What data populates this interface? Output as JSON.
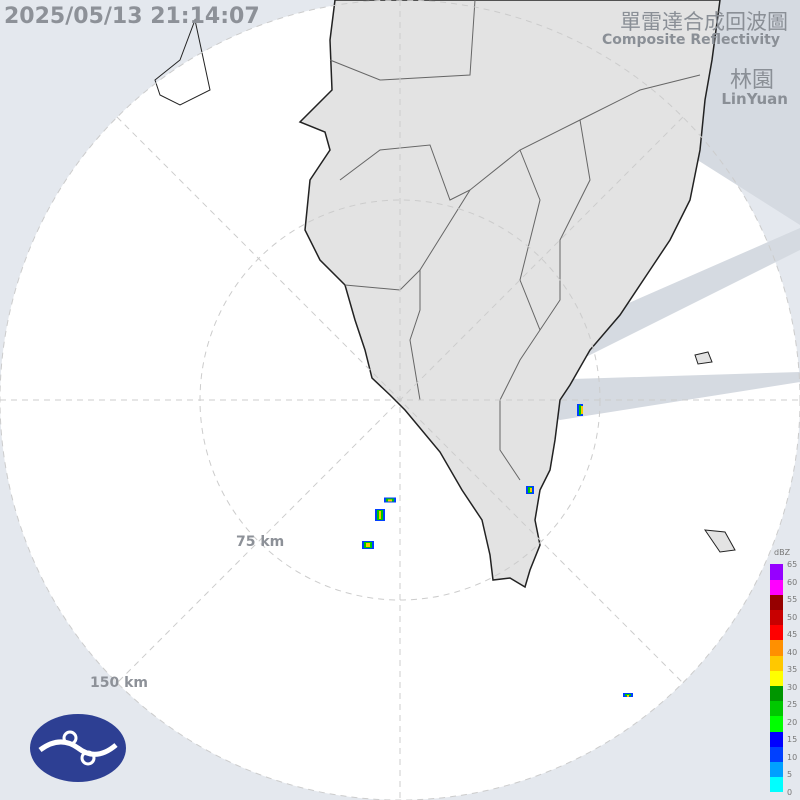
{
  "timestamp": "2025/05/13 21:14:07",
  "title_zh": "單雷達合成回波圖",
  "title_en": "Composite Reflectivity",
  "station_zh": "林園",
  "station_en": "LinYuan",
  "ranges": [
    "75 km",
    "150 km"
  ],
  "legend": {
    "unit": "dBZ",
    "ticks": [
      "65",
      "60",
      "55",
      "50",
      "45",
      "40",
      "35",
      "30",
      "25",
      "20",
      "15",
      "10",
      "5",
      "0"
    ],
    "colors": [
      "#00ffff",
      "#00a0ff",
      "#0040ff",
      "#0000ff",
      "#00ff00",
      "#00c800",
      "#009600",
      "#ffff00",
      "#ffc800",
      "#ff9000",
      "#ff0000",
      "#c80000",
      "#960000",
      "#ff00ff",
      "#9600ff"
    ]
  },
  "colors": {
    "outside": "#e4e8ee",
    "inside": "#ffffff",
    "land": "#e6e6e6",
    "blocked": "#d3d8df"
  },
  "logo": "central-weather-administration-logo"
}
